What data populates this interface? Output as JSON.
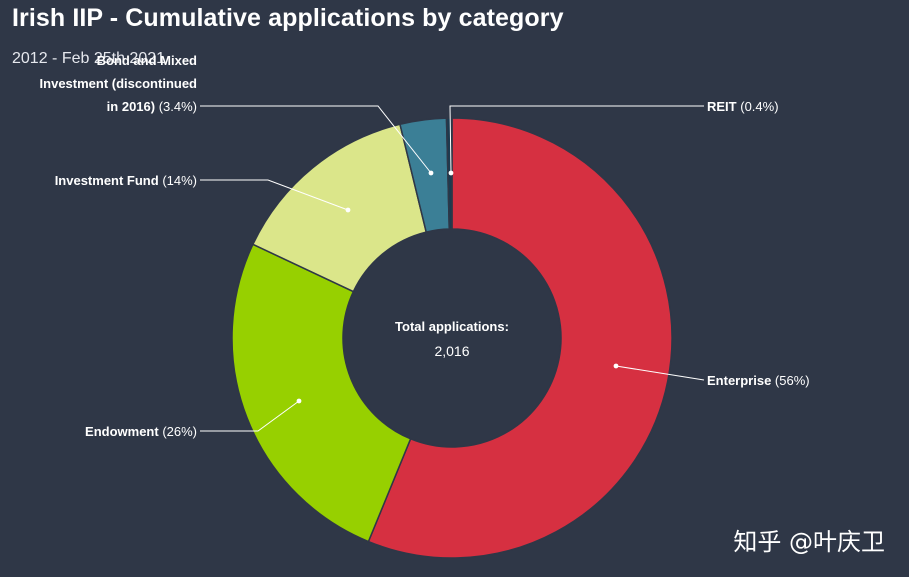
{
  "chart_data": {
    "type": "pie",
    "title": "Irish IIP - Cumulative applications by category",
    "subtitle": "2012 - Feb 25th 2021",
    "center_label": {
      "title": "Total applications:",
      "value": "2,016"
    },
    "slices": [
      {
        "label": "Enterprise",
        "display": "Enterprise",
        "pct_text": "(56%)",
        "value": 56.2,
        "color": "#d63041"
      },
      {
        "label": "Endowment",
        "display": "Endowment",
        "pct_text": "(26%)",
        "value": 25.8,
        "color": "#97d000"
      },
      {
        "label": "Investment Fund",
        "display": "Investment Fund",
        "pct_text": "(14%)",
        "value": 14.2,
        "color": "#dbe68a"
      },
      {
        "label": "Bond and Mixed Investment (discontinued in 2016)",
        "display_lines": [
          "Bond and Mixed",
          "Investment (discontinued",
          "in 2016)"
        ],
        "pct_text": "(3.4%)",
        "value": 3.4,
        "color": "#3b7f96"
      },
      {
        "label": "REIT",
        "display": "REIT",
        "pct_text": "(0.4%)",
        "value": 0.4,
        "color": "#1d3a4f"
      }
    ]
  },
  "watermark": "知乎 @叶庆卫"
}
